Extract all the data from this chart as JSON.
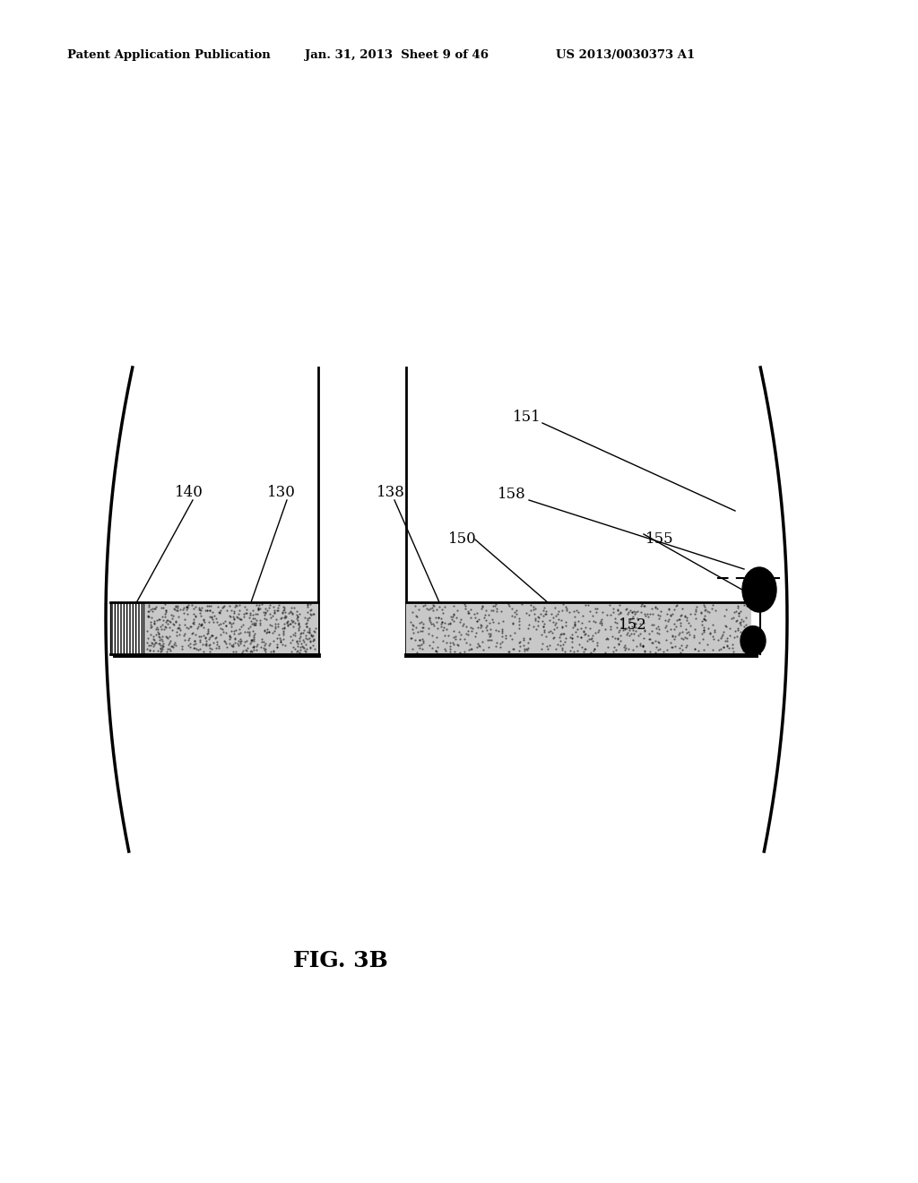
{
  "bg_color": "#ffffff",
  "header_text1": "Patent Application Publication",
  "header_text2": "Jan. 31, 2013  Sheet 9 of 46",
  "header_text3": "US 2013/0030373 A1",
  "fig_label": "FIG. 3B"
}
